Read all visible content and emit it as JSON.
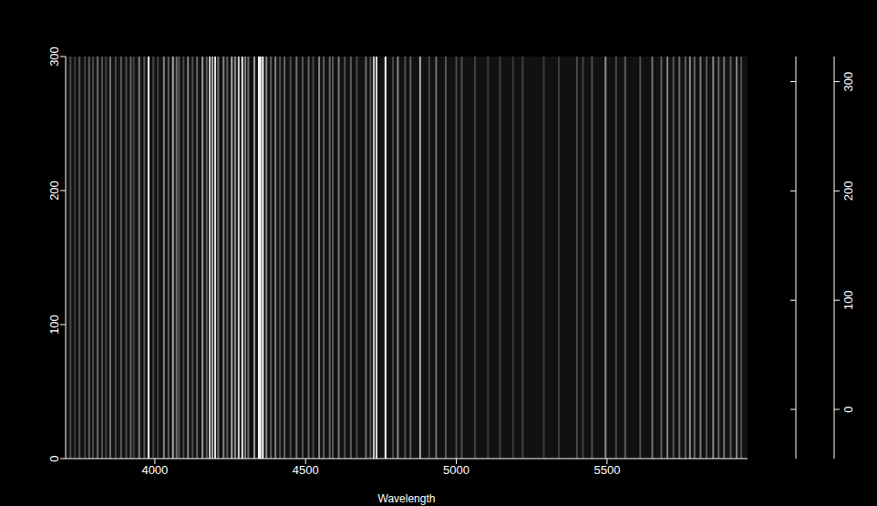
{
  "chart_data": {
    "type": "heatmap",
    "x_label": "Wavelength",
    "xlim": [
      3704,
      5966
    ],
    "xticks": [
      4000,
      4500,
      5000,
      5500
    ],
    "ylim": [
      0,
      300
    ],
    "yticks": [
      0,
      100,
      200,
      300
    ],
    "background": -20,
    "lines": {
      "wavelengths": [
        3720,
        3735,
        3750,
        3768,
        3782,
        3795,
        3810,
        3825,
        3838,
        3852,
        3870,
        3888,
        3905,
        3920,
        3930,
        3948,
        3965,
        3979,
        3995,
        4010,
        4030,
        4045,
        4060,
        4072,
        4080,
        4095,
        4110,
        4125,
        4140,
        4158,
        4172,
        4182,
        4191,
        4200,
        4210,
        4228,
        4240,
        4255,
        4266,
        4278,
        4290,
        4300,
        4310,
        4330,
        4345,
        4350,
        4358,
        4370,
        4385,
        4400,
        4415,
        4430,
        4450,
        4470,
        4490,
        4510,
        4525,
        4545,
        4560,
        4580,
        4590,
        4610,
        4630,
        4650,
        4670,
        4700,
        4715,
        4726,
        4735,
        4765,
        4790,
        4806,
        4830,
        4848,
        4880,
        4910,
        4933,
        4965,
        5000,
        5018,
        5062,
        5105,
        5145,
        5188,
        5220,
        5290,
        5340,
        5400,
        5420,
        5450,
        5495,
        5530,
        5560,
        5610,
        5650,
        5680,
        5700,
        5720,
        5740,
        5760,
        5775,
        5790,
        5810,
        5830,
        5852,
        5870,
        5888,
        5910,
        5930,
        5945
      ],
      "intensities": [
        60,
        40,
        80,
        50,
        90,
        60,
        110,
        70,
        50,
        120,
        60,
        90,
        70,
        100,
        50,
        140,
        80,
        320,
        60,
        50,
        150,
        90,
        200,
        120,
        80,
        60,
        150,
        70,
        100,
        180,
        90,
        250,
        200,
        280,
        120,
        150,
        90,
        200,
        160,
        250,
        300,
        140,
        110,
        180,
        320,
        320,
        320,
        150,
        90,
        140,
        70,
        100,
        60,
        120,
        80,
        100,
        60,
        150,
        90,
        100,
        80,
        130,
        70,
        90,
        60,
        110,
        70,
        250,
        280,
        320,
        60,
        150,
        70,
        90,
        200,
        60,
        120,
        80,
        60,
        70,
        50,
        40,
        50,
        40,
        50,
        40,
        40,
        60,
        50,
        70,
        160,
        60,
        90,
        70,
        120,
        90,
        140,
        80,
        110,
        90,
        150,
        100,
        130,
        80,
        150,
        100,
        120,
        90,
        140,
        70
      ]
    },
    "colorbar": {
      "range": [
        -45,
        323
      ],
      "ticks": [
        0,
        100,
        200,
        300
      ]
    }
  }
}
